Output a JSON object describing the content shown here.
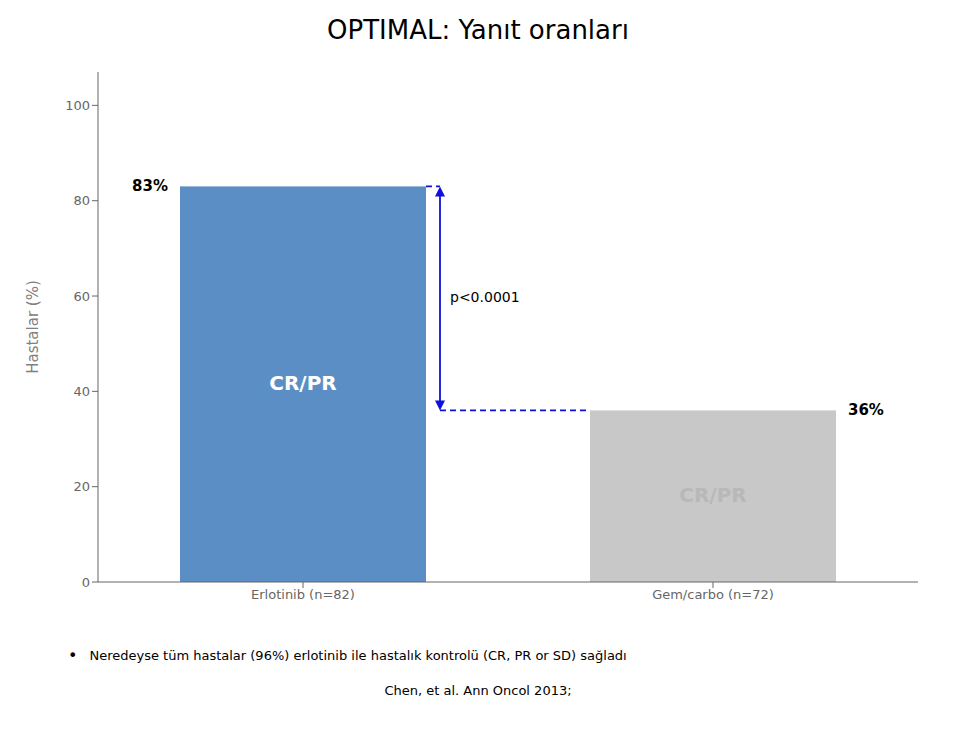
{
  "chart_data": {
    "type": "bar",
    "title": "OPTIMAL: Yanıt oranları",
    "categories": [
      "Erlotinib (n=82)",
      "Gem/carbo (n=72)"
    ],
    "values": [
      83,
      36
    ],
    "colors": [
      "#5b8ec4",
      "#c8c8c8"
    ],
    "ylabel": "Hastalar (%)",
    "ylim": [
      0,
      107
    ],
    "yticks": [
      0,
      20,
      40,
      60,
      80,
      100
    ],
    "grid": false,
    "data_labels": true,
    "value_labels": [
      "83%",
      "36%"
    ],
    "bar_labels": [
      "CR/PR",
      "CR/PR"
    ],
    "bar_label_colors": [
      "#ffffff",
      "#b8b8b8"
    ],
    "annotations": [
      {
        "text": "p<0.0001",
        "color": "#1010dd"
      }
    ],
    "footnotes": [
      {
        "bullet": "•",
        "text": "Neredeyse tüm hastalar (96%) erlotinib ile hastalık kontrolü (CR, PR or SD) sağladı"
      },
      {
        "text": "Chen, et al. Ann Oncol 2013;"
      }
    ]
  }
}
